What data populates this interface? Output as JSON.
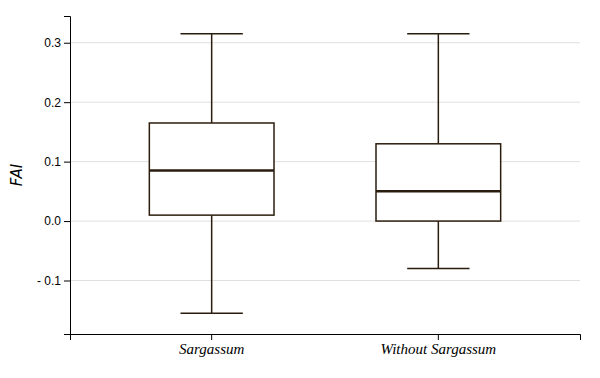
{
  "chart_data": {
    "type": "box",
    "categories": [
      "Sargassum",
      "Without Sargassum"
    ],
    "boxes": [
      {
        "q1": 0.01,
        "median": 0.085,
        "q3": 0.165,
        "whislo": -0.155,
        "whishi": 0.315
      },
      {
        "q1": 0.0,
        "median": 0.05,
        "q3": 0.13,
        "whislo": -0.08,
        "whishi": 0.315
      }
    ],
    "ylabel": "FAI",
    "ylim": [
      -0.19,
      0.345
    ],
    "yticks": [
      {
        "value": -0.1,
        "label": "- 0.1"
      },
      {
        "value": 0.0,
        "label": "0.0"
      },
      0.1,
      0.2,
      0.3
    ],
    "color": "#2b1d0e",
    "grid": true
  }
}
